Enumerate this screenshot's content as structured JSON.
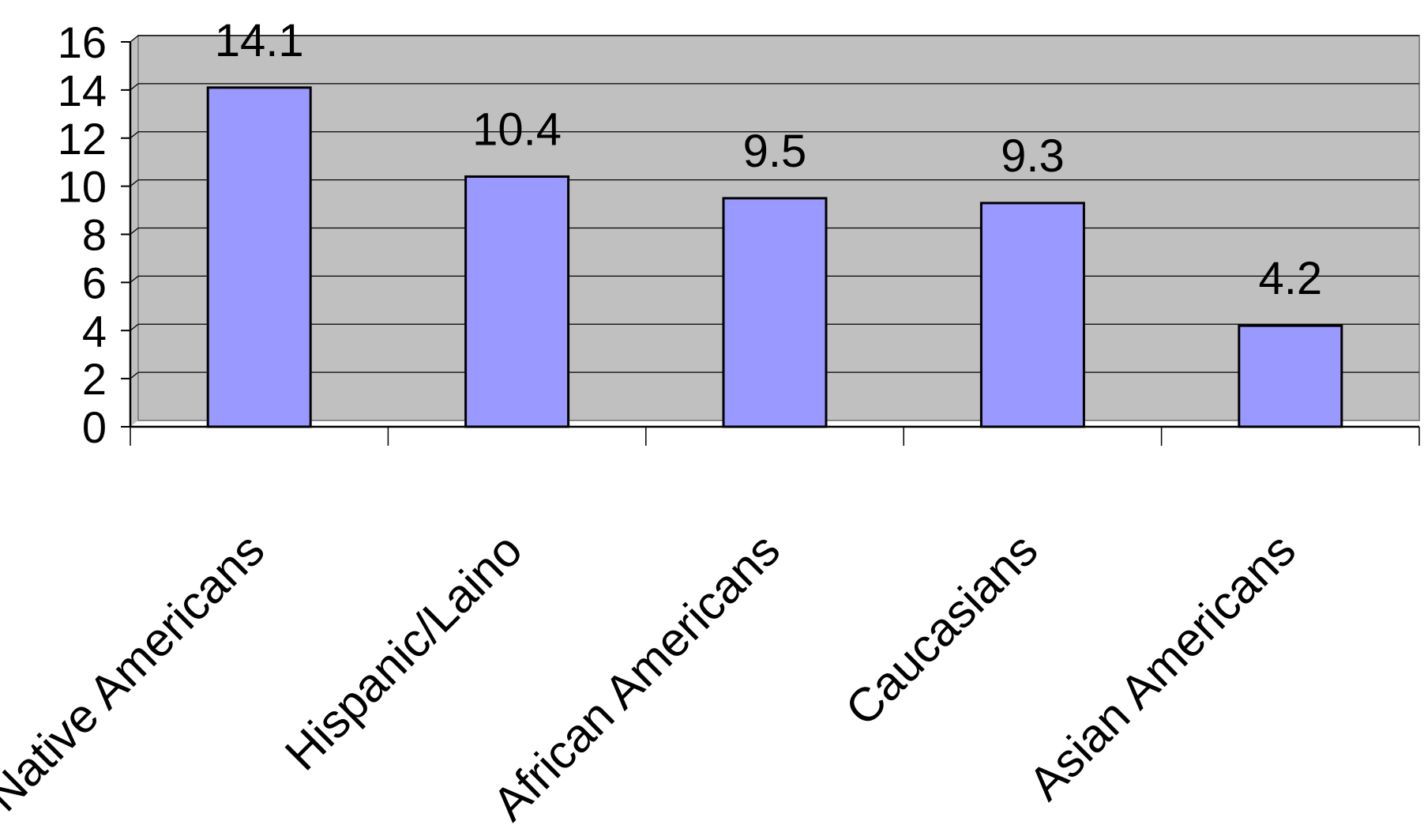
{
  "chart_data": {
    "type": "bar",
    "title": "",
    "xlabel": "",
    "ylabel": "",
    "categories": [
      "Native Americans",
      "Hispanic/Laino",
      "African Americans",
      "Caucasians",
      "Asian Americans"
    ],
    "values": [
      14.1,
      10.4,
      9.5,
      9.3,
      4.2
    ],
    "data_labels": [
      "14.1",
      "10.4",
      "9.5",
      "9.3",
      "4.2"
    ],
    "ylim": [
      0,
      16
    ],
    "yticks": [
      0,
      2,
      4,
      6,
      8,
      10,
      12,
      14,
      16
    ],
    "grid": true,
    "legend": "none",
    "colors": {
      "plot_background": "#c0c0c0",
      "bar_fill": "#9999ff",
      "bar_stroke": "#000000",
      "gridline": "#000000",
      "axis": "#000000"
    }
  }
}
